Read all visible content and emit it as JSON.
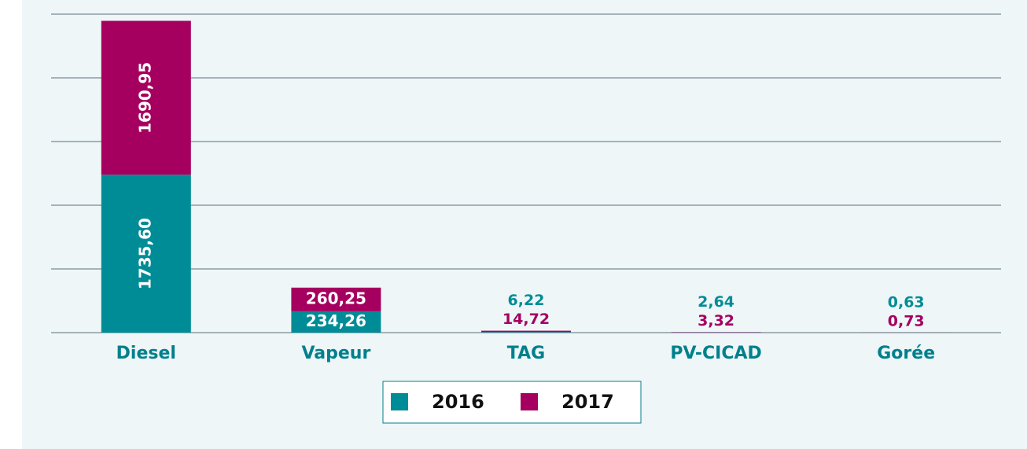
{
  "chart_data": {
    "type": "bar",
    "stacked": true,
    "categories": [
      "Diesel",
      "Vapeur",
      "TAG",
      "PV-CICAD",
      "Gorée"
    ],
    "series": [
      {
        "name": "2016",
        "color": "#008c96",
        "values": [
          1735.6,
          234.26,
          6.22,
          2.64,
          0.63
        ],
        "value_labels": [
          "1735,60",
          "234,26",
          "6,22",
          "2,64",
          "0,63"
        ]
      },
      {
        "name": "2017",
        "color": "#a5005f",
        "values": [
          1690.95,
          260.25,
          14.72,
          3.32,
          0.73
        ],
        "value_labels": [
          "1690,95",
          "260,25",
          "14,72",
          "3,32",
          "0,73"
        ]
      }
    ],
    "ylim": [
      0,
      3500
    ],
    "yticks": [
      0,
      700,
      1400,
      2100,
      2800,
      3500
    ],
    "grid": true,
    "legend": "bottom"
  }
}
